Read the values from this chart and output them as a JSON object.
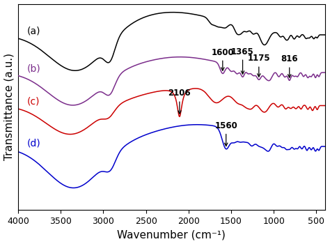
{
  "xlabel": "Wavenumber (cm⁻¹)",
  "ylabel": "Transmittance (a.u.)",
  "colors": {
    "a": "#000000",
    "b": "#7B2D8B",
    "c": "#CC0000",
    "d": "#0000CC"
  },
  "labels": {
    "a": "(a)",
    "b": "(b)",
    "c": "(c)",
    "d": "(d)"
  },
  "offsets": {
    "a": 0.78,
    "b": 0.42,
    "c": 0.1,
    "d": -0.3
  },
  "background_color": "#ffffff",
  "label_fontsize": 10,
  "tick_fontsize": 9,
  "annot_fontsize": 8.5
}
